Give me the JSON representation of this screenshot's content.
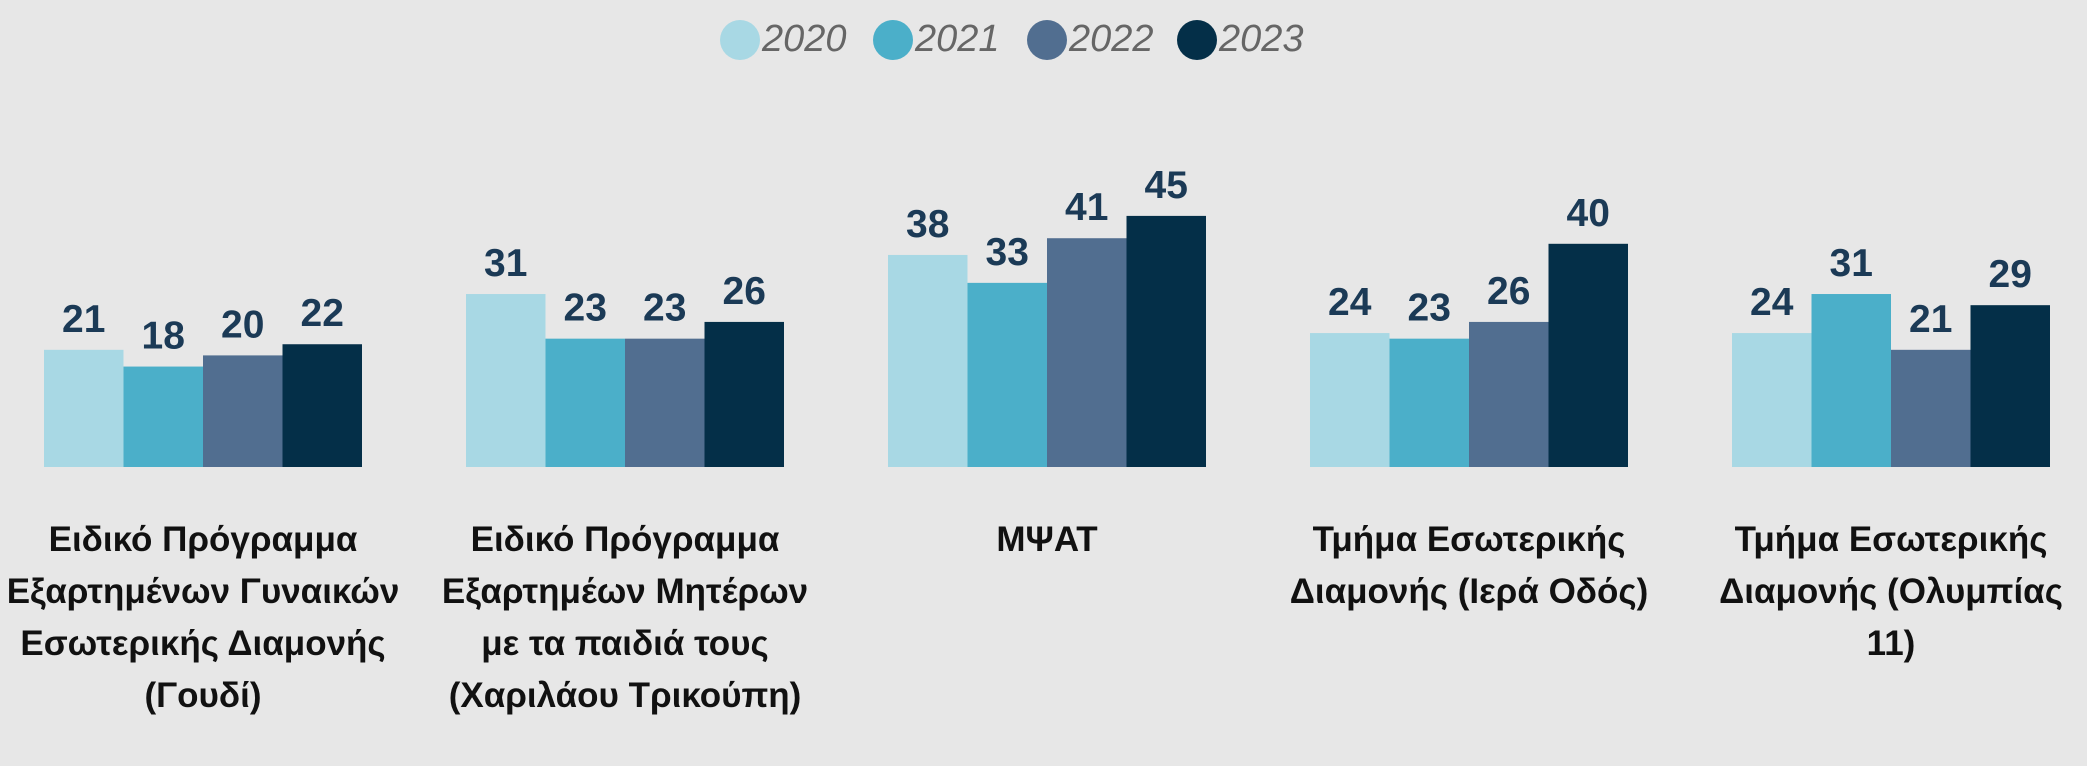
{
  "chart_data": {
    "type": "bar",
    "categories": [
      "Ειδικό Πρόγραμμα Εξαρτημένων Γυναικών Εσωτερικής Διαμονής (Γουδί)",
      "Ειδικό Πρόγραμμα Εξαρτημέων Μητέρων με τα παιδιά τους (Χαριλάου Τρικούπη)",
      "ΜΨΑΤ",
      "Τμήμα Εσωτερικής Διαμονής (Ιερά Οδός)",
      "Τμήμα Εσωτερικής Διαμονής (Ολυμπίας 11)"
    ],
    "series": [
      {
        "name": "2020",
        "color": "#a8d8e4",
        "values": [
          21,
          31,
          38,
          24,
          24
        ]
      },
      {
        "name": "2021",
        "color": "#4bafc9",
        "values": [
          18,
          23,
          33,
          23,
          31
        ]
      },
      {
        "name": "2022",
        "color": "#516e90",
        "values": [
          20,
          23,
          41,
          26,
          21
        ]
      },
      {
        "name": "2023",
        "color": "#042f48",
        "values": [
          22,
          26,
          45,
          40,
          29
        ]
      }
    ],
    "legend": "top"
  }
}
